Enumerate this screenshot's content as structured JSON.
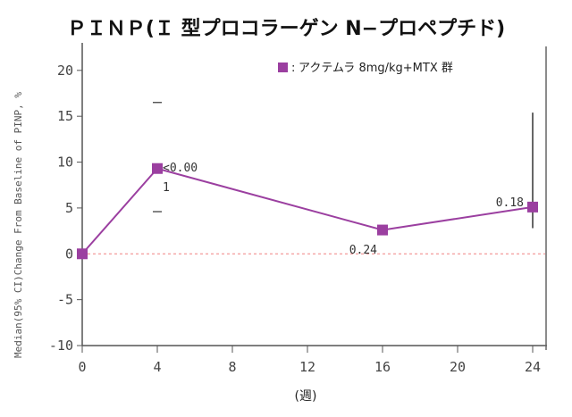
{
  "chart_data": {
    "type": "line",
    "title": "ＰＩＮＰ(Ｉ 型プロコラーゲン N−プロペプチド)",
    "xlabel": "(週)",
    "ylabel": "Median(95% CI)Change From Baseline of PINP, %",
    "x_ticks": [
      "0",
      "4",
      "8",
      "12",
      "16",
      "20",
      "24"
    ],
    "y_ticks": [
      "20",
      "15",
      "10",
      "5",
      "0",
      "-5",
      "-10"
    ],
    "xlim": [
      0,
      24
    ],
    "ylim": [
      -10,
      23
    ],
    "reference_line": 0,
    "reference_color": "#f08080",
    "series": [
      {
        "name": "アクテムラ 8mg/kg+MTX 群",
        "color": "#9b3fa0",
        "x": [
          0,
          4,
          16,
          24
        ],
        "y": [
          0,
          9.3,
          2.6,
          5.1
        ],
        "ci_low": [
          null,
          4.6,
          null,
          2.8
        ],
        "ci_high": [
          null,
          16.5,
          null,
          15.4
        ]
      }
    ],
    "legend_marker": "■",
    "legend_separator": ":",
    "annotations": [
      {
        "x": 4,
        "text": "<0.00"
      },
      {
        "x": 4,
        "text": "1"
      },
      {
        "x": 16,
        "text": "0.24"
      },
      {
        "x": 24,
        "text": "0.18"
      }
    ]
  }
}
